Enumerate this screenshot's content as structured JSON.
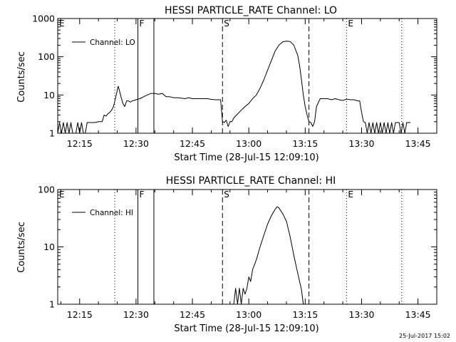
{
  "timestamp": "25-Jul-2017 15:02",
  "chart_data": [
    {
      "type": "line",
      "title": "HESSI PARTICLE_RATE Channel: LO",
      "xlabel": "Start Time (28-Jul-15 12:09:10)",
      "ylabel": "Counts/sec",
      "yscale": "log",
      "ylim": [
        1,
        1000
      ],
      "ytick_labels": [
        "1",
        "10",
        "100",
        "1000"
      ],
      "xlim": [
        "12:09:10",
        "13:50:00"
      ],
      "xtick_labels": [
        "12:15",
        "12:30",
        "12:45",
        "13:00",
        "13:15",
        "13:30",
        "13:45"
      ],
      "legend": "top-left",
      "series": [
        {
          "name": "Channel: LO",
          "color": "#000000",
          "points": [
            [
              "12:09:10",
              1
            ],
            [
              "12:09:40",
              1.9
            ],
            [
              "12:10:10",
              1
            ],
            [
              "12:10:40",
              1.9
            ],
            [
              "12:11:10",
              1
            ],
            [
              "12:11:40",
              1.9
            ],
            [
              "12:12:10",
              1
            ],
            [
              "12:12:40",
              1.9
            ],
            [
              "12:13:10",
              1
            ],
            [
              "12:14:00",
              1
            ],
            [
              "12:14:30",
              1.9
            ],
            [
              "12:15:00",
              1
            ],
            [
              "12:15:30",
              1.9
            ],
            [
              "12:16:00",
              1
            ],
            [
              "12:16:30",
              1
            ],
            [
              "12:17:00",
              1.9
            ],
            [
              "12:18:00",
              1.9
            ],
            [
              "12:19:00",
              1.9
            ],
            [
              "12:20:00",
              2.0
            ],
            [
              "12:21:00",
              2.0
            ],
            [
              "12:21:30",
              3.0
            ],
            [
              "12:22:00",
              2.8
            ],
            [
              "12:22:30",
              3.2
            ],
            [
              "12:23:00",
              3.5
            ],
            [
              "12:23:30",
              4.0
            ],
            [
              "12:24:00",
              5.0
            ],
            [
              "12:24:30",
              8.0
            ],
            [
              "12:25:00",
              13
            ],
            [
              "12:25:15",
              17
            ],
            [
              "12:25:30",
              14
            ],
            [
              "12:26:00",
              9
            ],
            [
              "12:26:30",
              6
            ],
            [
              "12:27:00",
              5
            ],
            [
              "12:27:30",
              7
            ],
            [
              "12:28:00",
              7
            ],
            [
              "12:28:30",
              6.5
            ],
            [
              "12:29:00",
              7
            ],
            [
              "12:30:00",
              7.5
            ],
            [
              "12:31:00",
              8
            ],
            [
              "12:32:00",
              9
            ],
            [
              "12:33:00",
              10
            ],
            [
              "12:34:00",
              11
            ],
            [
              "12:35:00",
              11
            ],
            [
              "12:36:00",
              10.5
            ],
            [
              "12:37:00",
              11
            ],
            [
              "12:38:00",
              9
            ],
            [
              "12:39:00",
              9
            ],
            [
              "12:40:00",
              8.5
            ],
            [
              "12:41:00",
              8.5
            ],
            [
              "12:42:00",
              8.3
            ],
            [
              "12:43:00",
              8
            ],
            [
              "12:44:00",
              8.5
            ],
            [
              "12:45:00",
              8
            ],
            [
              "12:46:00",
              8
            ],
            [
              "12:47:00",
              8
            ],
            [
              "12:48:00",
              8
            ],
            [
              "12:49:00",
              8
            ],
            [
              "12:50:00",
              7.7
            ],
            [
              "12:51:00",
              7.5
            ],
            [
              "12:52:00",
              7.5
            ],
            [
              "12:52:30",
              7.5
            ],
            [
              "12:53:00",
              2
            ],
            [
              "12:53:30",
              1.9
            ],
            [
              "12:54:00",
              2.2
            ],
            [
              "12:54:30",
              1.5
            ],
            [
              "12:55:00",
              2.0
            ],
            [
              "12:55:30",
              2.0
            ],
            [
              "12:56:00",
              2.5
            ],
            [
              "12:57:00",
              3.2
            ],
            [
              "12:58:00",
              4.0
            ],
            [
              "12:59:00",
              5.0
            ],
            [
              "13:00:00",
              6.0
            ],
            [
              "13:01:00",
              8.0
            ],
            [
              "13:02:00",
              10
            ],
            [
              "13:03:00",
              15
            ],
            [
              "13:04:00",
              25
            ],
            [
              "13:05:00",
              45
            ],
            [
              "13:06:00",
              80
            ],
            [
              "13:07:00",
              140
            ],
            [
              "13:08:00",
              200
            ],
            [
              "13:09:00",
              245
            ],
            [
              "13:10:00",
              255
            ],
            [
              "13:11:00",
              250
            ],
            [
              "13:12:00",
              200
            ],
            [
              "13:13:00",
              110
            ],
            [
              "13:13:30",
              60
            ],
            [
              "13:14:00",
              25
            ],
            [
              "13:14:30",
              10
            ],
            [
              "13:15:00",
              5
            ],
            [
              "13:15:30",
              3
            ],
            [
              "13:16:00",
              2
            ],
            [
              "13:16:30",
              1.9
            ],
            [
              "13:17:00",
              1.5
            ],
            [
              "13:17:30",
              2.0
            ],
            [
              "13:18:00",
              5
            ],
            [
              "13:19:00",
              8
            ],
            [
              "13:20:00",
              8
            ],
            [
              "13:21:00",
              8
            ],
            [
              "13:22:00",
              7.5
            ],
            [
              "13:23:00",
              8
            ],
            [
              "13:24:00",
              7.5
            ],
            [
              "13:25:00",
              7.2
            ],
            [
              "13:26:00",
              7.8
            ],
            [
              "13:27:00",
              7.5
            ],
            [
              "13:28:00",
              7.5
            ],
            [
              "13:29:00",
              7.0
            ],
            [
              "13:29:30",
              7.0
            ],
            [
              "13:30:00",
              3.5
            ],
            [
              "13:30:30",
              2.0
            ],
            [
              "13:31:00",
              1.9
            ],
            [
              "13:31:30",
              1
            ],
            [
              "13:32:00",
              1.9
            ],
            [
              "13:32:30",
              1
            ],
            [
              "13:33:00",
              1.9
            ],
            [
              "13:33:30",
              1
            ],
            [
              "13:34:00",
              1.9
            ],
            [
              "13:34:30",
              1
            ],
            [
              "13:35:00",
              1.9
            ],
            [
              "13:35:30",
              1
            ],
            [
              "13:36:00",
              1.9
            ],
            [
              "13:36:30",
              1
            ],
            [
              "13:37:00",
              1.9
            ],
            [
              "13:37:30",
              1
            ],
            [
              "13:38:00",
              1.9
            ],
            [
              "13:38:30",
              1
            ],
            [
              "13:39:00",
              1.9
            ],
            [
              "13:40:00",
              1.9
            ],
            [
              "13:40:30",
              1
            ],
            [
              "13:41:00",
              1.9
            ],
            [
              "13:41:30",
              1
            ],
            [
              "13:42:00",
              1.9
            ],
            [
              "13:43:00",
              1.9
            ]
          ]
        }
      ],
      "markers": [
        {
          "time": "12:24:20",
          "label": "",
          "style": "dotted"
        },
        {
          "time": "12:30:30",
          "label": "F",
          "style": "solid"
        },
        {
          "time": "12:34:45",
          "label": "",
          "style": "solid"
        },
        {
          "time": "12:53:00",
          "label": "S",
          "style": "dashed"
        },
        {
          "time": "13:16:00",
          "label": "",
          "style": "dashed"
        },
        {
          "time": "13:26:00",
          "label": "E",
          "style": "dotted"
        },
        {
          "time": "13:40:40",
          "label": "",
          "style": "dotted"
        },
        {
          "time": "12:09:10",
          "label": "E",
          "style": "none"
        }
      ]
    },
    {
      "type": "line",
      "title": "HESSI PARTICLE_RATE Channel: HI",
      "xlabel": "Start Time (28-Jul-15 12:09:10)",
      "ylabel": "Counts/sec",
      "yscale": "log",
      "ylim": [
        1,
        100
      ],
      "ytick_labels": [
        "1",
        "10",
        "100"
      ],
      "xlim": [
        "12:09:10",
        "13:50:00"
      ],
      "xtick_labels": [
        "12:15",
        "12:30",
        "12:45",
        "13:00",
        "13:15",
        "13:30",
        "13:45"
      ],
      "legend": "top-left",
      "series": [
        {
          "name": "Channel: HI",
          "color": "#000000",
          "points": [
            [
              "12:56:00",
              1
            ],
            [
              "12:56:30",
              1.9
            ],
            [
              "12:57:00",
              1
            ],
            [
              "12:57:30",
              1.9
            ],
            [
              "12:58:00",
              1
            ],
            [
              "12:58:30",
              1.9
            ],
            [
              "12:59:00",
              1.5
            ],
            [
              "12:59:30",
              1.9
            ],
            [
              "13:00:00",
              3
            ],
            [
              "13:00:30",
              2.5
            ],
            [
              "13:01:00",
              4
            ],
            [
              "13:02:00",
              6
            ],
            [
              "13:03:00",
              10
            ],
            [
              "13:04:00",
              16
            ],
            [
              "13:05:00",
              25
            ],
            [
              "13:06:00",
              35
            ],
            [
              "13:07:00",
              45
            ],
            [
              "13:07:30",
              50
            ],
            [
              "13:08:00",
              48
            ],
            [
              "13:09:00",
              38
            ],
            [
              "13:10:00",
              28
            ],
            [
              "13:11:00",
              15
            ],
            [
              "13:12:00",
              7
            ],
            [
              "13:13:00",
              3.5
            ],
            [
              "13:14:00",
              1.8
            ],
            [
              "13:14:30",
              1
            ]
          ]
        }
      ],
      "markers": [
        {
          "time": "12:24:20",
          "label": "",
          "style": "dotted"
        },
        {
          "time": "12:30:30",
          "label": "F",
          "style": "solid"
        },
        {
          "time": "12:34:45",
          "label": "",
          "style": "solid"
        },
        {
          "time": "12:53:00",
          "label": "S",
          "style": "dashed"
        },
        {
          "time": "13:16:00",
          "label": "",
          "style": "dashed"
        },
        {
          "time": "13:26:00",
          "label": "E",
          "style": "dotted"
        },
        {
          "time": "13:40:40",
          "label": "",
          "style": "dotted"
        },
        {
          "time": "12:09:10",
          "label": "E",
          "style": "none"
        }
      ]
    }
  ]
}
